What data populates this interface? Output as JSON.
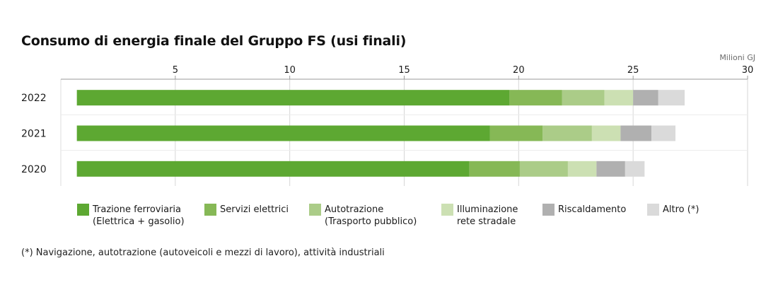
{
  "title": "Consumo di energia finale del Gruppo FS (usi finali)",
  "footnote": "(*) Navigazione, autotrazione (autoveicoli e mezzi di lavoro), attività industriali",
  "chart_data": {
    "type": "bar",
    "orientation": "horizontal",
    "stacked": true,
    "unit_label": "Milioni GJ",
    "categories": [
      "2022",
      "2021",
      "2020"
    ],
    "xlim": [
      0,
      30
    ],
    "x_ticks": [
      "5",
      "10",
      "15",
      "20",
      "25",
      "30"
    ],
    "grid": true,
    "legend_position": "bottom",
    "series": [
      {
        "key": "trazione",
        "name_lines": [
          "Trazione ferroviaria",
          "(Elettrica + gasolio)"
        ],
        "color": "#5da832",
        "values": [
          18.9,
          18.05,
          17.15
        ]
      },
      {
        "key": "servizi",
        "name_lines": [
          "Servizi elettrici"
        ],
        "color": "#86b856",
        "values": [
          2.3,
          2.3,
          2.2
        ]
      },
      {
        "key": "autotrazione",
        "name_lines": [
          "Autotrazione",
          "(Trasporto pubblico)"
        ],
        "color": "#abcc88",
        "values": [
          1.85,
          2.15,
          2.1
        ]
      },
      {
        "key": "illuminazione",
        "name_lines": [
          "Illuminazione",
          "rete stradale"
        ],
        "color": "#cce0b3",
        "values": [
          1.25,
          1.25,
          1.25
        ]
      },
      {
        "key": "riscaldamento",
        "name_lines": [
          "Riscaldamento"
        ],
        "color": "#b0b0b0",
        "values": [
          1.1,
          1.35,
          1.25
        ]
      },
      {
        "key": "altro",
        "name_lines": [
          "Altro (*)"
        ],
        "color": "#dadada",
        "values": [
          1.15,
          1.05,
          0.85
        ]
      }
    ]
  }
}
